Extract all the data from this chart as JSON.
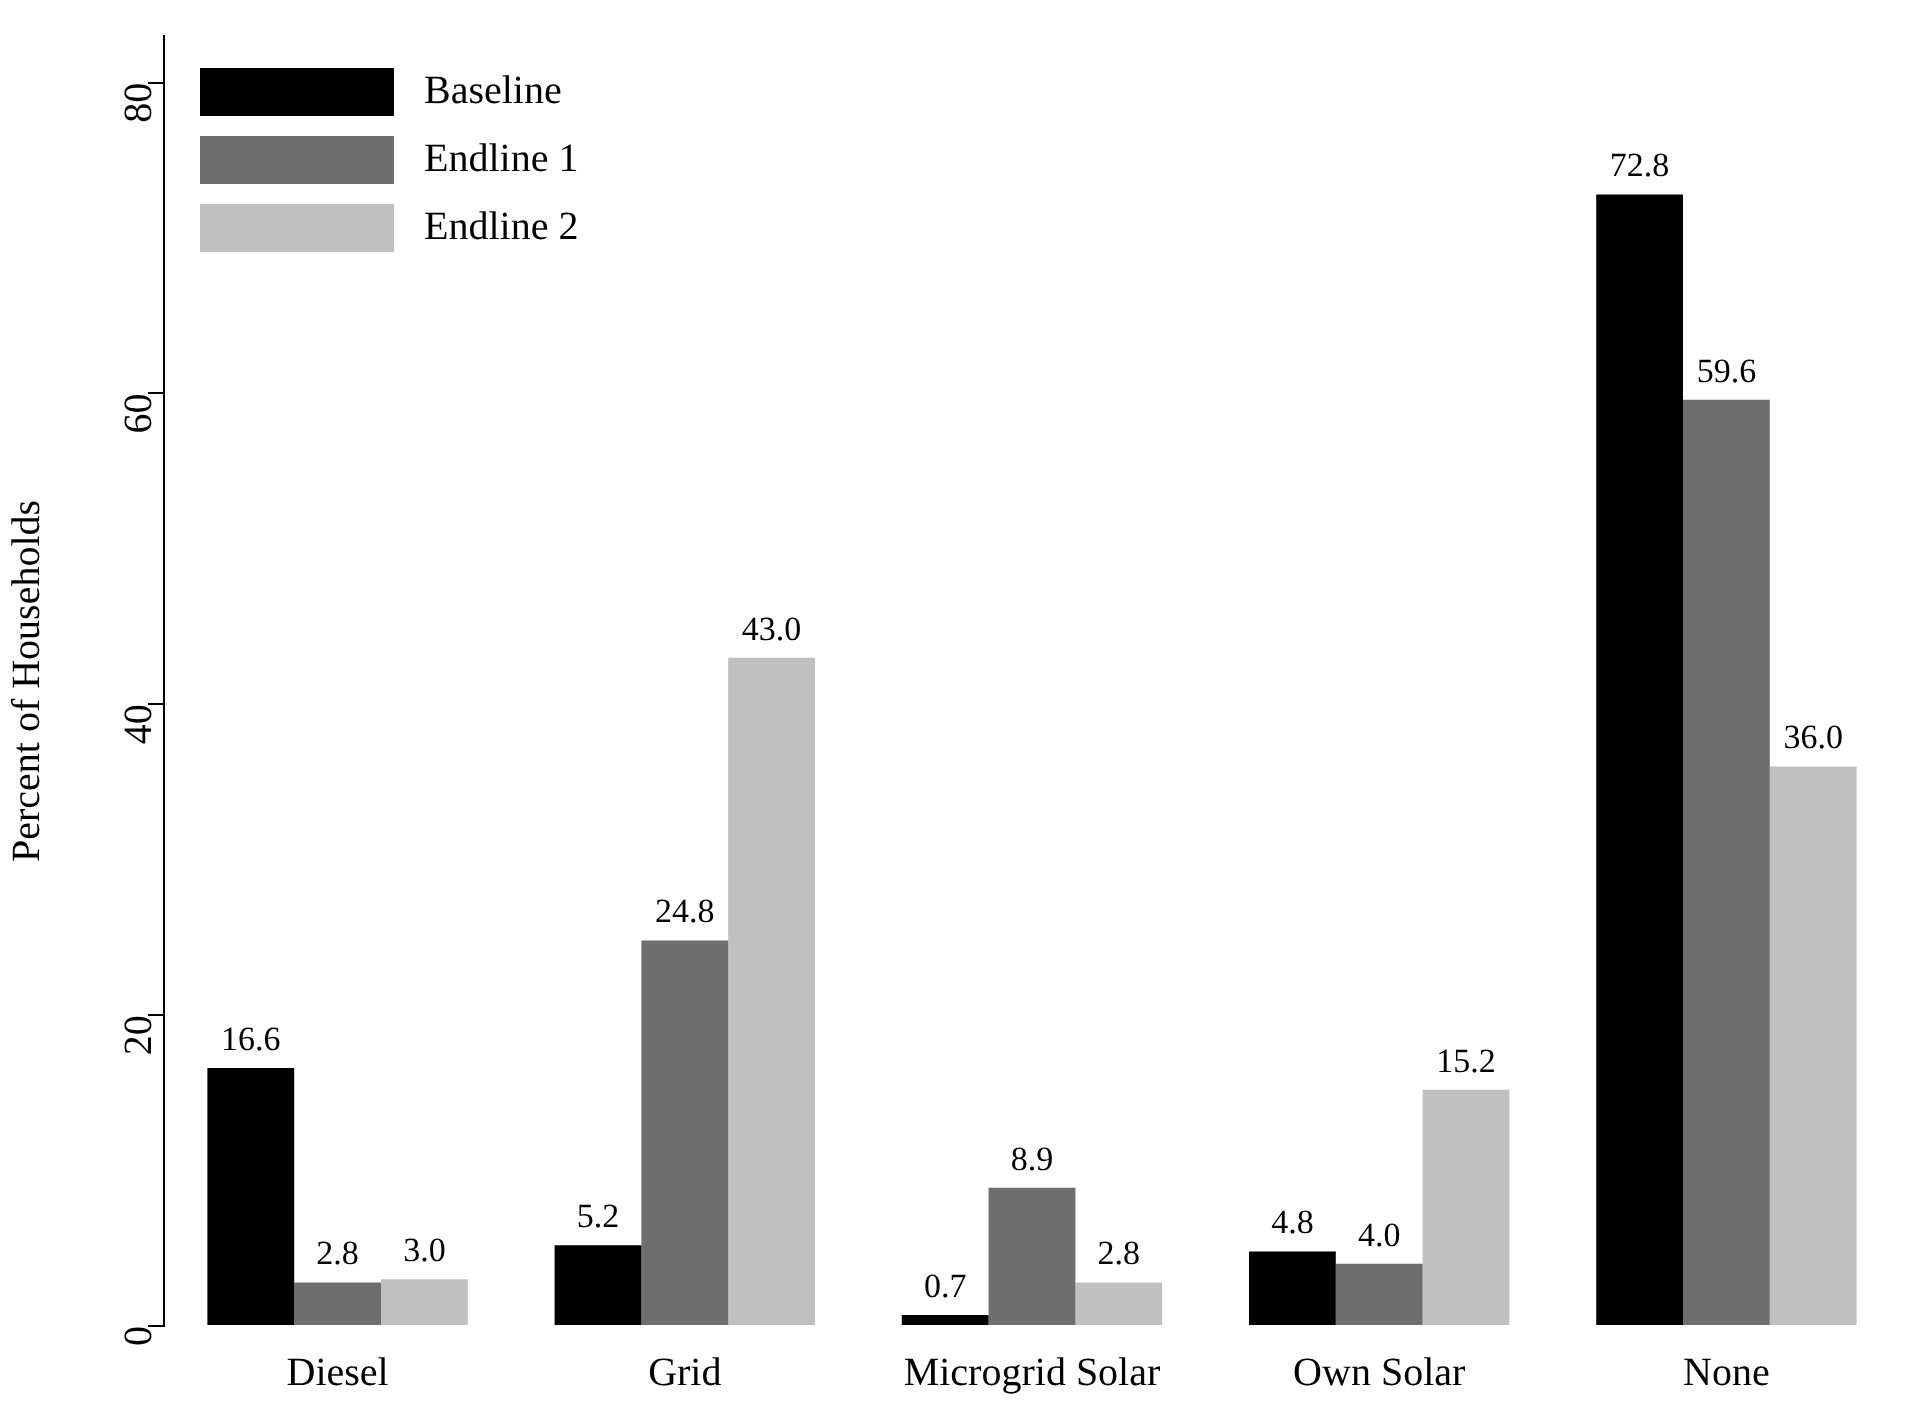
{
  "chart_data": {
    "type": "bar",
    "ylabel": "Percent of Households",
    "categories": [
      "Diesel",
      "Grid",
      "Microgrid Solar",
      "Own Solar",
      "None"
    ],
    "series": [
      {
        "name": "Baseline",
        "color": "#000000",
        "values": [
          16.6,
          5.2,
          0.7,
          4.8,
          72.8
        ],
        "value_labels": [
          "16.6",
          "5.2",
          "0.7",
          "4.8",
          "72.8"
        ]
      },
      {
        "name": "Endline 1",
        "color": "#6e6e6e",
        "values": [
          2.8,
          24.8,
          8.9,
          4.0,
          59.6
        ],
        "value_labels": [
          "2.8",
          "24.8",
          "8.9",
          "4.0",
          "59.6"
        ]
      },
      {
        "name": "Endline 2",
        "color": "#c0c0c0",
        "values": [
          3.0,
          43.0,
          2.8,
          15.2,
          36.0
        ],
        "value_labels": [
          "3.0",
          "43.0",
          "2.8",
          "15.2",
          "36.0"
        ]
      }
    ],
    "ylim": [
      0,
      83
    ],
    "yticks": [
      0,
      20,
      40,
      60,
      80
    ],
    "grid": false,
    "legend": "top left"
  }
}
